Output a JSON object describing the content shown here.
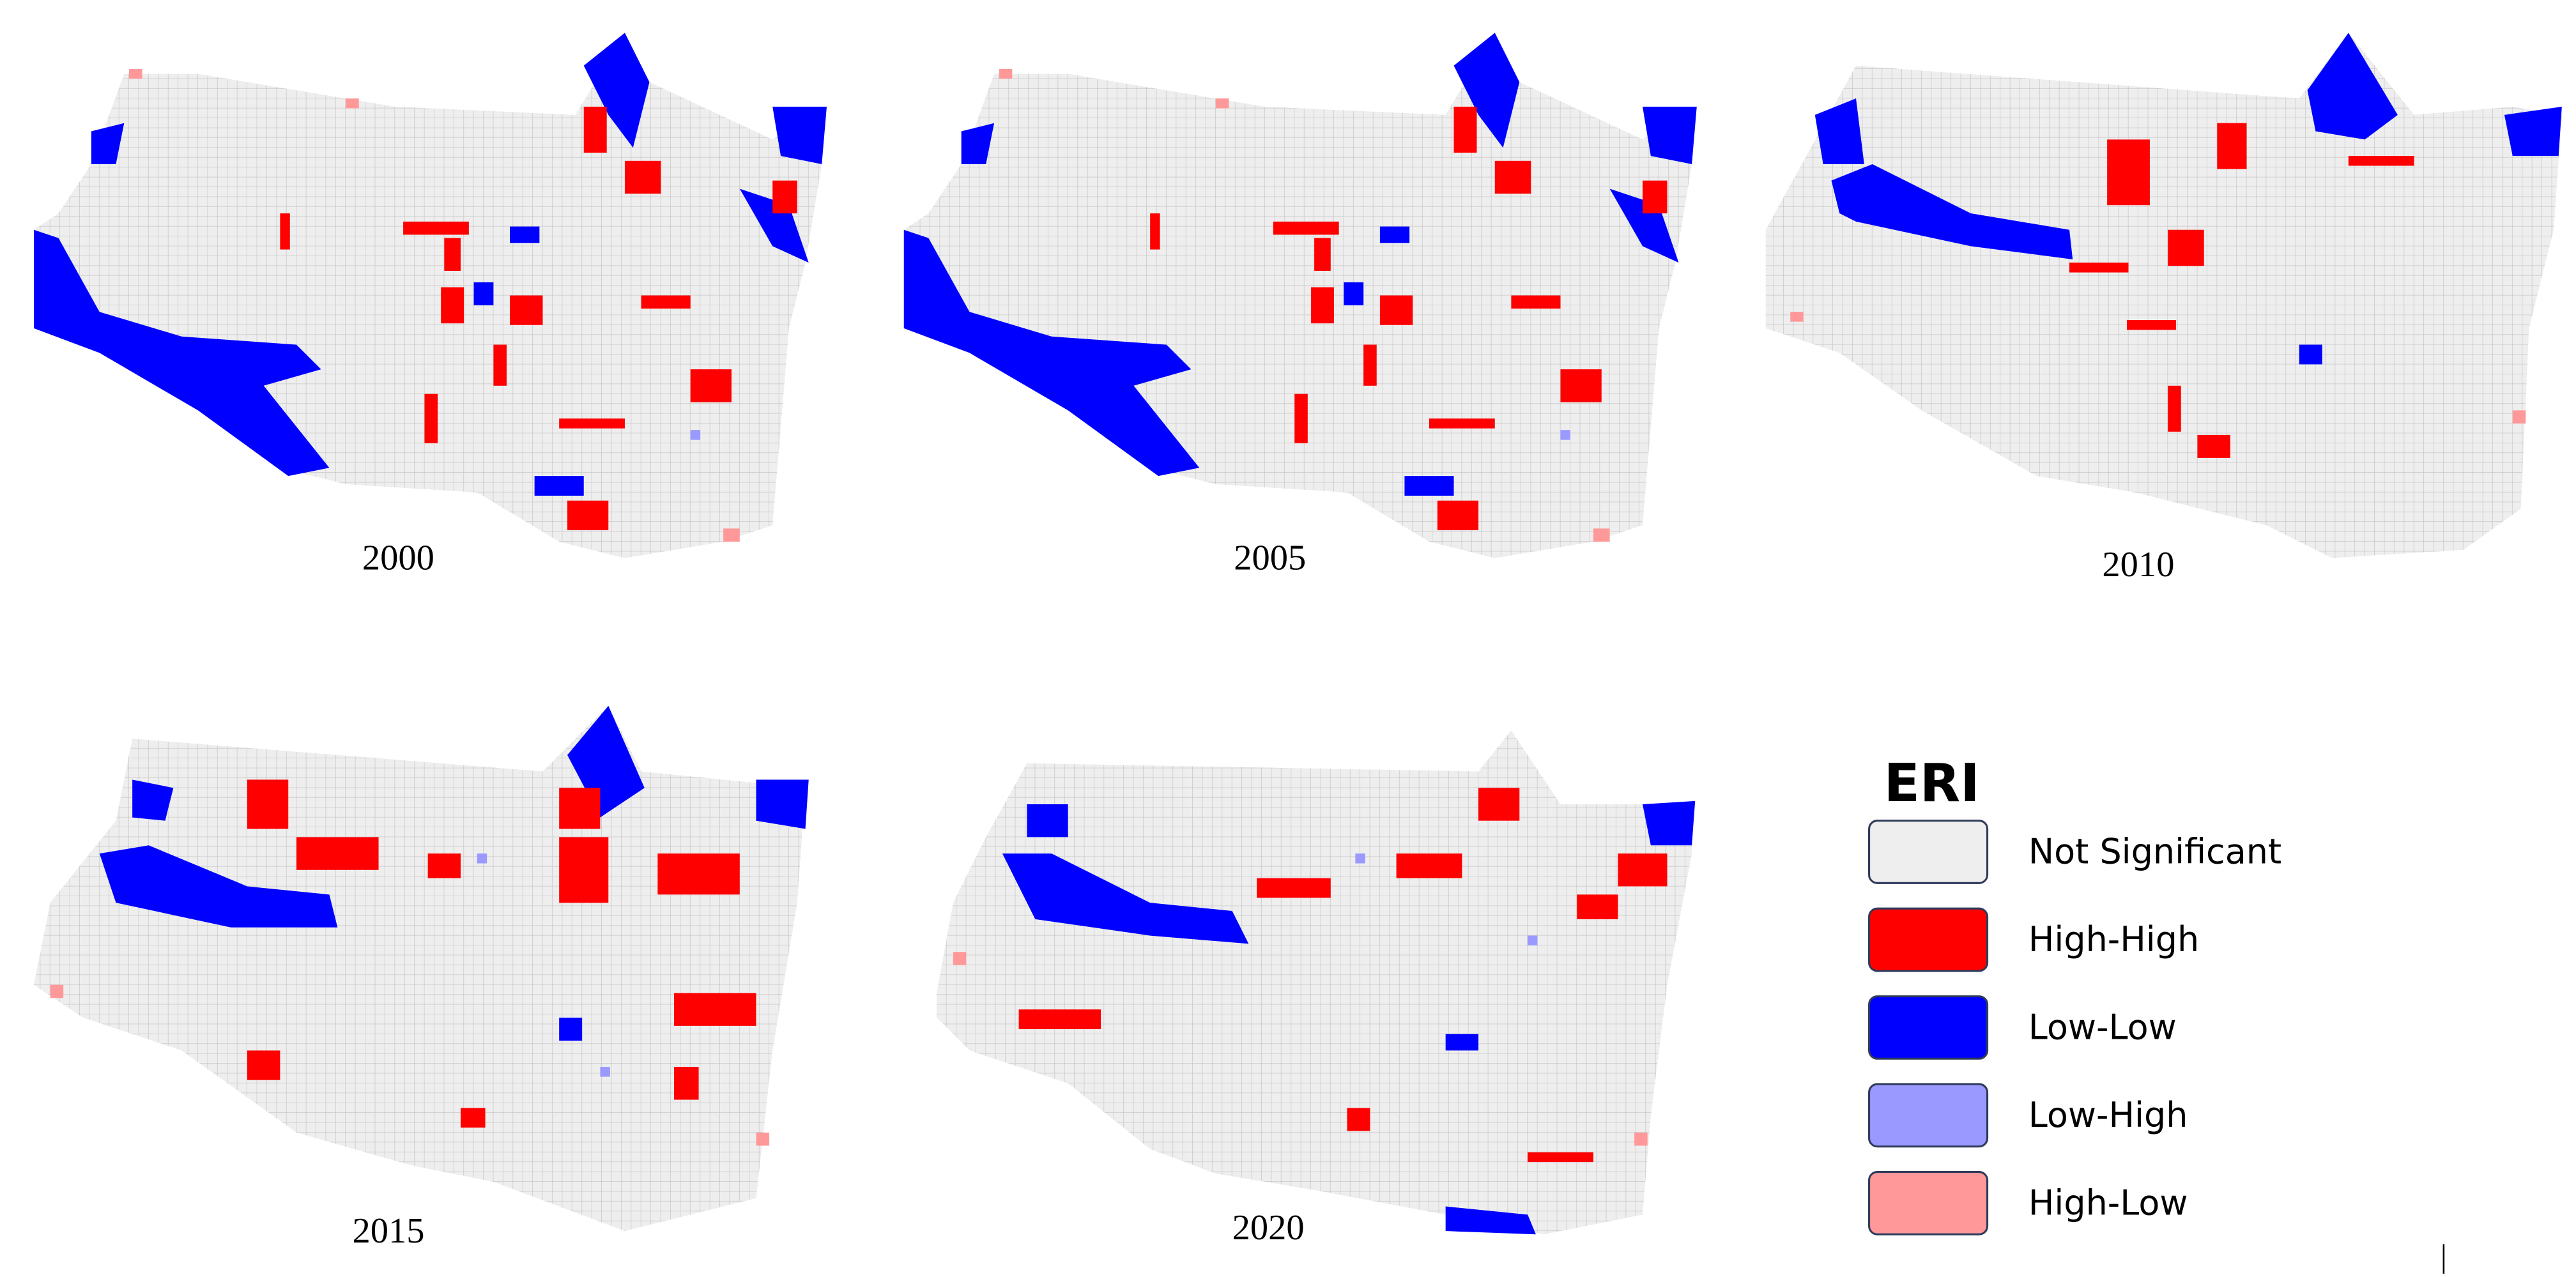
{
  "maps": [
    {
      "label": "2000"
    },
    {
      "label": "2005"
    },
    {
      "label": "2010"
    },
    {
      "label": "2015"
    },
    {
      "label": "2020"
    }
  ],
  "legend": {
    "title": "ERI",
    "items": [
      {
        "label": "Not Significant",
        "color": "#eeeeee"
      },
      {
        "label": "High-High",
        "color": "#ff0000"
      },
      {
        "label": "Low-Low",
        "color": "#0000ff"
      },
      {
        "label": "Low-High",
        "color": "#9999ff"
      },
      {
        "label": "High-Low",
        "color": "#ff9999"
      }
    ]
  }
}
